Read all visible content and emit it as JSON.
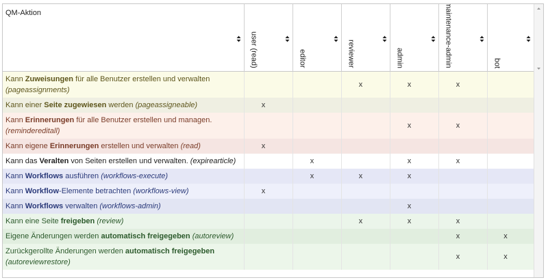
{
  "table": {
    "header": [
      "QM-Aktion",
      "user (read)",
      "editor",
      "reviewer",
      "admin",
      "maintenance-admin",
      "bot"
    ],
    "rows": [
      {
        "label": {
          "pre": "Kann ",
          "bold": "Zuweisungen",
          "post": " für alle Benutzer erstellen und verwalten",
          "code": "(pageassignments)"
        },
        "cells": [
          null,
          null,
          "x",
          "x",
          "x",
          null
        ]
      },
      {
        "label": {
          "pre": "Kann einer ",
          "bold": "Seite zugewiesen",
          "post": " werden",
          "code": "(pageassigneable)"
        },
        "cells": [
          "x",
          null,
          null,
          null,
          null,
          null
        ]
      },
      {
        "label": {
          "pre": "Kann ",
          "bold": "Erinnerungen",
          "post": " für alle Benutzer erstellen und managen.",
          "code": "(remindereditall)"
        },
        "cells": [
          null,
          null,
          null,
          "x",
          "x",
          null
        ]
      },
      {
        "label": {
          "pre": "Kann eigene ",
          "bold": "Erinnerungen",
          "post": " erstellen und verwalten",
          "code": "(read)"
        },
        "cells": [
          "x",
          null,
          null,
          null,
          null,
          null
        ]
      },
      {
        "label": {
          "pre": "Kann das ",
          "bold": "Veralten",
          "post": " von Seiten erstellen und verwalten.",
          "code": "(expirearticle)"
        },
        "cells": [
          null,
          "x",
          null,
          "x",
          "x",
          null
        ]
      },
      {
        "label": {
          "pre": "Kann ",
          "bold": "Workflows",
          "post": " ausführen",
          "code": "(workflows-execute)"
        },
        "cells": [
          null,
          "x",
          "x",
          "x",
          null,
          null
        ]
      },
      {
        "label": {
          "pre": "Kann ",
          "bold": "Workflow",
          "post": "-Elemente betrachten",
          "code": "(workflows-view)"
        },
        "cells": [
          "x",
          null,
          null,
          null,
          null,
          null
        ]
      },
      {
        "label": {
          "pre": "Kann ",
          "bold": "Workflows",
          "post": " verwalten",
          "code": "(workflows-admin)"
        },
        "cells": [
          null,
          null,
          null,
          "x",
          null,
          null
        ]
      },
      {
        "label": {
          "pre": "Kann eine Seite ",
          "bold": "freigeben",
          "post": null,
          "code": "(review)"
        },
        "cells": [
          null,
          null,
          "x",
          "x",
          "x",
          null
        ]
      },
      {
        "label": {
          "pre": "Eigene Änderungen werden ",
          "bold": "automatisch freigegeben",
          "post": null,
          "code": "(autoreview)"
        },
        "cells": [
          null,
          null,
          null,
          null,
          "x",
          "x"
        ]
      },
      {
        "label": {
          "pre": "Zurückgerollte Änderungen werden ",
          "bold": "automatisch freigegeben",
          "post": null,
          "code": "(autoreviewrestore)"
        },
        "cells": [
          null,
          null,
          null,
          null,
          "x",
          "x"
        ]
      }
    ]
  }
}
